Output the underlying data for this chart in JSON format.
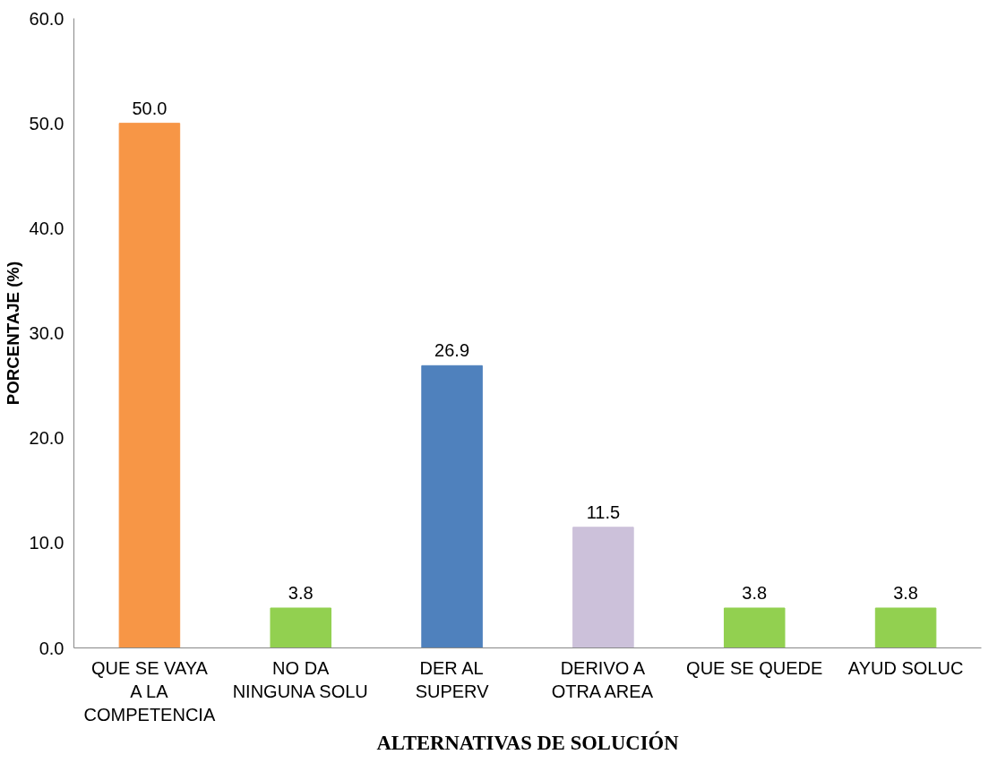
{
  "chart_data": {
    "type": "bar",
    "xlabel": "ALTERNATIVAS DE SOLUCIÓN",
    "ylabel": "PORCENTAJE (%)",
    "categories": [
      "QUE SE VAYA A LA COMPETENCIA",
      "NO DA NINGUNA SOLU",
      "DER AL SUPERV",
      "DERIVO A OTRA AREA",
      "QUE SE QUEDE",
      "AYUD SOLUC"
    ],
    "values": [
      50.0,
      3.8,
      26.9,
      11.5,
      3.8,
      3.8
    ],
    "colors": [
      "#f79646",
      "#92d050",
      "#4f81bd",
      "#ccc1da",
      "#92d050",
      "#92d050"
    ],
    "value_labels": [
      "50.0",
      "3.8",
      "26.9",
      "11.5",
      "3.8",
      "3.8"
    ],
    "ylim": [
      0,
      60
    ],
    "yticks": [
      {
        "value": 0,
        "label": "0.0"
      },
      {
        "value": 10,
        "label": "10.0"
      },
      {
        "value": 20,
        "label": "20.0"
      },
      {
        "value": 30,
        "label": "30.0"
      },
      {
        "value": 40,
        "label": "40.0"
      },
      {
        "value": 50,
        "label": "50.0"
      },
      {
        "value": 60,
        "label": "60.0"
      }
    ],
    "grid": false
  }
}
